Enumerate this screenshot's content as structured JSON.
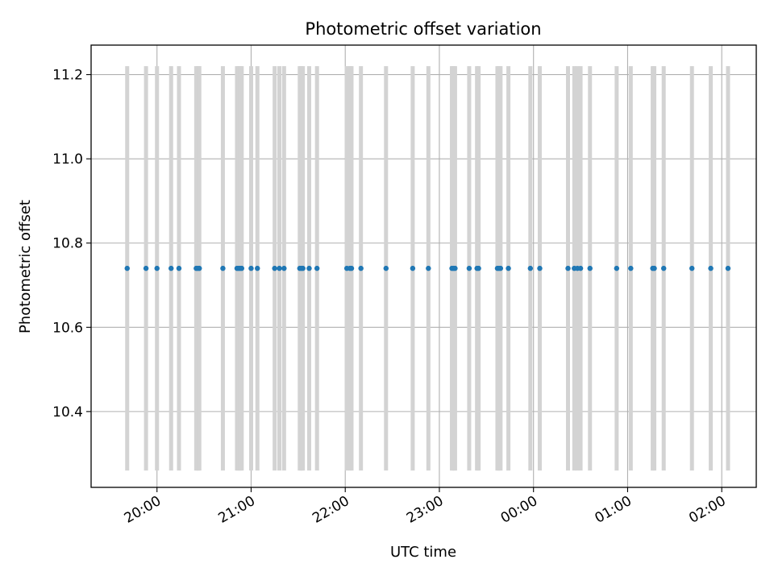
{
  "chart_data": {
    "type": "scatter",
    "title": "Photometric offset variation",
    "xlabel": "UTC time",
    "ylabel": "Photometric offset",
    "x_ticks": [
      {
        "label": "20:00",
        "hour": 20.0
      },
      {
        "label": "21:00",
        "hour": 21.0
      },
      {
        "label": "22:00",
        "hour": 22.0
      },
      {
        "label": "23:00",
        "hour": 23.0
      },
      {
        "label": "00:00",
        "hour": 24.0
      },
      {
        "label": "01:00",
        "hour": 25.0
      },
      {
        "label": "02:00",
        "hour": 26.0
      }
    ],
    "xlim": [
      "19:18",
      "02:22"
    ],
    "ylim": [
      10.22,
      11.27
    ],
    "y_ticks": [
      10.4,
      10.6,
      10.8,
      11.0,
      11.2
    ],
    "grid": true,
    "error_bar_color": "#d3d3d3",
    "point_color": "#1f77b4",
    "series": [
      {
        "x": [
          "19:41",
          "19:53",
          "20:00",
          "20:09",
          "20:14",
          "20:25",
          "20:26",
          "20:27",
          "20:42",
          "20:51",
          "20:52",
          "20:53",
          "20:54",
          "21:00",
          "21:04",
          "21:15",
          "21:18",
          "21:21",
          "21:31",
          "21:32",
          "21:33",
          "21:37",
          "21:42",
          "22:01",
          "22:03",
          "22:04",
          "22:10",
          "22:26",
          "22:43",
          "22:53",
          "23:08",
          "23:09",
          "23:10",
          "23:19",
          "23:24",
          "23:25",
          "23:37",
          "23:38",
          "23:39",
          "23:44",
          "23:58",
          "00:04",
          "00:22",
          "00:26",
          "00:28",
          "00:30",
          "00:36",
          "00:53",
          "01:02",
          "01:16",
          "01:17",
          "01:23",
          "01:41",
          "01:53",
          "02:04"
        ],
        "y": [
          10.74,
          10.74,
          10.74,
          10.74,
          10.74,
          10.74,
          10.74,
          10.74,
          10.74,
          10.74,
          10.74,
          10.74,
          10.74,
          10.74,
          10.74,
          10.74,
          10.74,
          10.74,
          10.74,
          10.74,
          10.74,
          10.74,
          10.74,
          10.74,
          10.74,
          10.74,
          10.74,
          10.74,
          10.74,
          10.74,
          10.74,
          10.74,
          10.74,
          10.74,
          10.74,
          10.74,
          10.74,
          10.74,
          10.74,
          10.74,
          10.74,
          10.74,
          10.74,
          10.74,
          10.74,
          10.74,
          10.74,
          10.74,
          10.74,
          10.74,
          10.74,
          10.74,
          10.74,
          10.74,
          10.74
        ],
        "yerr_low": 10.26,
        "yerr_high": 11.22
      }
    ]
  }
}
